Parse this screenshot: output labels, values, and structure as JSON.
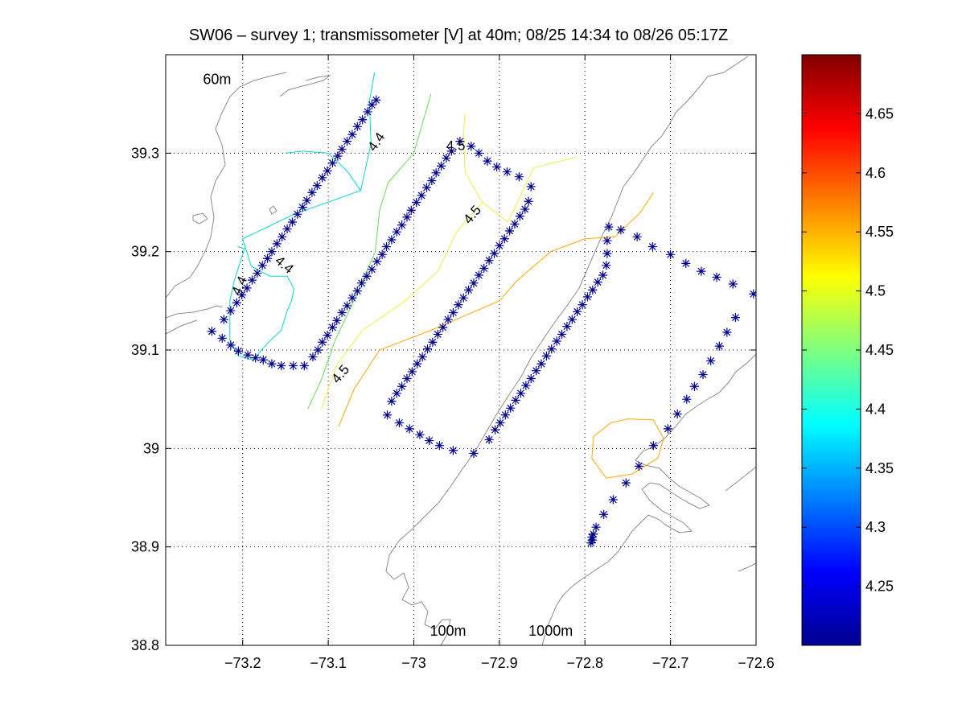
{
  "chart_data": {
    "type": "scatter",
    "title": "SW06 – survey 1; transmissometer [V] at 40m; 08/25 14:34 to 08/26 05:17Z",
    "xlabel": "",
    "ylabel": "",
    "xlim": [
      -73.29,
      -72.6
    ],
    "ylim": [
      38.8,
      39.4
    ],
    "grid": true,
    "x_ticks": [
      -73.2,
      -73.1,
      -73.0,
      -72.9,
      -72.8,
      -72.7,
      -72.6
    ],
    "x_tick_labels": [
      "−73.2",
      "−73.1",
      "−73",
      "−72.9",
      "−72.8",
      "−72.7",
      "−72.6"
    ],
    "y_ticks": [
      38.8,
      38.9,
      39.0,
      39.1,
      39.2,
      39.3
    ],
    "y_tick_labels": [
      "38.8",
      "38.9",
      "39",
      "39.1",
      "39.2",
      "39.3"
    ],
    "isobath_labels": [
      {
        "text": "60m",
        "x": -73.23,
        "y": 39.37
      },
      {
        "text": "100m",
        "x": -72.96,
        "y": 38.81
      },
      {
        "text": "1000m",
        "x": -72.84,
        "y": 38.81
      }
    ],
    "marker_color": "#00008b",
    "marker": "asterisk",
    "stations": [
      [
        -73.236,
        39.119
      ],
      [
        -73.222,
        39.131
      ],
      [
        -73.214,
        39.14
      ],
      [
        -73.207,
        39.148
      ],
      [
        -73.201,
        39.156
      ],
      [
        -73.195,
        39.163
      ],
      [
        -73.189,
        39.171
      ],
      [
        -73.183,
        39.178
      ],
      [
        -73.177,
        39.186
      ],
      [
        -73.171,
        39.193
      ],
      [
        -73.166,
        39.2
      ],
      [
        -73.16,
        39.208
      ],
      [
        -73.154,
        39.215
      ],
      [
        -73.148,
        39.223
      ],
      [
        -73.142,
        39.23
      ],
      [
        -73.136,
        39.238
      ],
      [
        -73.13,
        39.245
      ],
      [
        -73.125,
        39.252
      ],
      [
        -73.119,
        39.26
      ],
      [
        -73.113,
        39.267
      ],
      [
        -73.107,
        39.275
      ],
      [
        -73.101,
        39.282
      ],
      [
        -73.095,
        39.29
      ],
      [
        -73.089,
        39.297
      ],
      [
        -73.084,
        39.304
      ],
      [
        -73.078,
        39.312
      ],
      [
        -73.072,
        39.319
      ],
      [
        -73.066,
        39.327
      ],
      [
        -73.06,
        39.334
      ],
      [
        -73.054,
        39.342
      ],
      [
        -73.049,
        39.349
      ],
      [
        -73.044,
        39.354
      ],
      [
        -73.224,
        39.112
      ],
      [
        -73.214,
        39.105
      ],
      [
        -73.205,
        39.099
      ],
      [
        -73.194,
        39.095
      ],
      [
        -73.185,
        39.092
      ],
      [
        -73.176,
        39.09
      ],
      [
        -73.166,
        39.086
      ],
      [
        -73.155,
        39.084
      ],
      [
        -73.141,
        39.084
      ],
      [
        -73.128,
        39.084
      ],
      [
        -73.118,
        39.093
      ],
      [
        -73.112,
        39.1
      ],
      [
        -73.107,
        39.108
      ],
      [
        -73.101,
        39.115
      ],
      [
        -73.095,
        39.123
      ],
      [
        -73.09,
        39.13
      ],
      [
        -73.084,
        39.138
      ],
      [
        -73.078,
        39.145
      ],
      [
        -73.072,
        39.153
      ],
      [
        -73.066,
        39.16
      ],
      [
        -73.061,
        39.168
      ],
      [
        -73.055,
        39.175
      ],
      [
        -73.049,
        39.182
      ],
      [
        -73.043,
        39.19
      ],
      [
        -73.037,
        39.197
      ],
      [
        -73.032,
        39.205
      ],
      [
        -73.026,
        39.212
      ],
      [
        -73.02,
        39.22
      ],
      [
        -73.014,
        39.227
      ],
      [
        -73.008,
        39.235
      ],
      [
        -73.003,
        39.242
      ],
      [
        -72.997,
        39.25
      ],
      [
        -72.991,
        39.257
      ],
      [
        -72.985,
        39.265
      ],
      [
        -72.979,
        39.272
      ],
      [
        -72.974,
        39.28
      ],
      [
        -72.968,
        39.287
      ],
      [
        -72.962,
        39.295
      ],
      [
        -72.956,
        39.302
      ],
      [
        -72.946,
        39.312
      ],
      [
        -72.933,
        39.307
      ],
      [
        -72.924,
        39.3
      ],
      [
        -72.914,
        39.292
      ],
      [
        -72.903,
        39.286
      ],
      [
        -72.891,
        39.281
      ],
      [
        -72.877,
        39.276
      ],
      [
        -72.863,
        39.266
      ],
      [
        -72.866,
        39.251
      ],
      [
        -72.87,
        39.243
      ],
      [
        -72.876,
        39.236
      ],
      [
        -72.882,
        39.228
      ],
      [
        -72.888,
        39.221
      ],
      [
        -72.894,
        39.213
      ],
      [
        -72.9,
        39.206
      ],
      [
        -72.906,
        39.198
      ],
      [
        -72.912,
        39.191
      ],
      [
        -72.918,
        39.183
      ],
      [
        -72.924,
        39.176
      ],
      [
        -72.93,
        39.168
      ],
      [
        -72.936,
        39.161
      ],
      [
        -72.942,
        39.153
      ],
      [
        -72.948,
        39.146
      ],
      [
        -72.954,
        39.138
      ],
      [
        -72.96,
        39.131
      ],
      [
        -72.966,
        39.123
      ],
      [
        -72.972,
        39.116
      ],
      [
        -72.978,
        39.108
      ],
      [
        -72.984,
        39.101
      ],
      [
        -72.99,
        39.093
      ],
      [
        -72.996,
        39.086
      ],
      [
        -73.002,
        39.078
      ],
      [
        -73.008,
        39.071
      ],
      [
        -73.014,
        39.063
      ],
      [
        -73.02,
        39.056
      ],
      [
        -73.026,
        39.048
      ],
      [
        -73.031,
        39.034
      ],
      [
        -73.017,
        39.026
      ],
      [
        -73.005,
        39.02
      ],
      [
        -72.993,
        39.014
      ],
      [
        -72.982,
        39.008
      ],
      [
        -72.97,
        39.003
      ],
      [
        -72.954,
        38.998
      ],
      [
        -72.93,
        38.995
      ],
      [
        -72.912,
        39.009
      ],
      [
        -72.905,
        39.019
      ],
      [
        -72.899,
        39.026
      ],
      [
        -72.893,
        39.034
      ],
      [
        -72.887,
        39.041
      ],
      [
        -72.881,
        39.049
      ],
      [
        -72.875,
        39.056
      ],
      [
        -72.869,
        39.064
      ],
      [
        -72.863,
        39.071
      ],
      [
        -72.857,
        39.079
      ],
      [
        -72.851,
        39.086
      ],
      [
        -72.845,
        39.094
      ],
      [
        -72.839,
        39.101
      ],
      [
        -72.833,
        39.109
      ],
      [
        -72.827,
        39.116
      ],
      [
        -72.821,
        39.124
      ],
      [
        -72.815,
        39.131
      ],
      [
        -72.809,
        39.139
      ],
      [
        -72.803,
        39.146
      ],
      [
        -72.797,
        39.154
      ],
      [
        -72.791,
        39.161
      ],
      [
        -72.785,
        39.169
      ],
      [
        -72.779,
        39.176
      ],
      [
        -72.775,
        39.186
      ],
      [
        -72.774,
        39.198
      ],
      [
        -72.774,
        39.211
      ],
      [
        -72.772,
        39.225
      ],
      [
        -72.758,
        39.222
      ],
      [
        -72.739,
        39.215
      ],
      [
        -72.721,
        39.205
      ],
      [
        -72.7,
        39.197
      ],
      [
        -72.682,
        39.188
      ],
      [
        -72.664,
        39.18
      ],
      [
        -72.646,
        39.174
      ],
      [
        -72.627,
        39.167
      ],
      [
        -72.603,
        39.157
      ],
      [
        -72.624,
        39.133
      ],
      [
        -72.634,
        39.118
      ],
      [
        -72.643,
        39.104
      ],
      [
        -72.653,
        39.089
      ],
      [
        -72.662,
        39.075
      ],
      [
        -72.672,
        39.063
      ],
      [
        -72.681,
        39.05
      ],
      [
        -72.692,
        39.035
      ],
      [
        -72.703,
        39.02
      ],
      [
        -72.72,
        39.003
      ],
      [
        -72.737,
        38.982
      ],
      [
        -72.752,
        38.965
      ],
      [
        -72.767,
        38.948
      ],
      [
        -72.778,
        38.933
      ],
      [
        -72.787,
        38.92
      ],
      [
        -72.79,
        38.913
      ],
      [
        -72.792,
        38.91
      ],
      [
        -72.791,
        38.907
      ],
      [
        -72.793,
        38.904
      ]
    ],
    "contours": [
      {
        "level": 4.4,
        "color": "#00d8d8",
        "points": [
          [
            -73.15,
            39.3
          ],
          [
            -73.13,
            39.302
          ],
          [
            -73.1,
            39.3
          ],
          [
            -73.078,
            39.282
          ],
          [
            -73.062,
            39.262
          ],
          [
            -73.14,
            39.238
          ],
          [
            -73.2,
            39.213
          ],
          [
            -73.19,
            39.185
          ],
          [
            -73.168,
            39.175
          ],
          [
            -73.148,
            39.175
          ],
          [
            -73.14,
            39.162
          ],
          [
            -73.143,
            39.15
          ],
          [
            -73.148,
            39.14
          ],
          [
            -73.155,
            39.12
          ],
          [
            -73.17,
            39.108
          ],
          [
            -73.188,
            39.09
          ]
        ]
      },
      {
        "level": 4.4,
        "color": "#00d8d8",
        "points": [
          [
            -73.062,
            39.262
          ],
          [
            -73.05,
            39.31
          ],
          [
            -73.052,
            39.352
          ],
          [
            -73.046,
            39.382
          ]
        ]
      },
      {
        "level": 4.4,
        "color": "#00d8d8",
        "points": [
          [
            -73.188,
            39.09
          ],
          [
            -73.205,
            39.094
          ],
          [
            -73.215,
            39.11
          ],
          [
            -73.215,
            39.15
          ],
          [
            -73.21,
            39.17
          ],
          [
            -73.198,
            39.203
          ],
          [
            -73.206,
            39.205
          ]
        ]
      },
      {
        "level": 4.45,
        "color": "#66dd55",
        "points": [
          [
            -72.98,
            39.36
          ],
          [
            -73.0,
            39.3
          ],
          [
            -73.03,
            39.27
          ],
          [
            -73.04,
            39.242
          ],
          [
            -73.045,
            39.2
          ],
          [
            -73.055,
            39.18
          ],
          [
            -73.07,
            39.15
          ],
          [
            -73.092,
            39.11
          ],
          [
            -73.108,
            39.07
          ],
          [
            -73.124,
            39.04
          ]
        ]
      },
      {
        "level": 4.5,
        "color": "#eeee44",
        "points": [
          [
            -72.94,
            39.34
          ],
          [
            -72.942,
            39.32
          ],
          [
            -72.94,
            39.28
          ],
          [
            -72.92,
            39.25
          ],
          [
            -72.89,
            39.23
          ],
          [
            -72.86,
            39.285
          ],
          [
            -72.81,
            39.296
          ]
        ]
      },
      {
        "level": 4.5,
        "color": "#eeee44",
        "points": [
          [
            -72.92,
            39.25
          ],
          [
            -72.95,
            39.22
          ],
          [
            -72.972,
            39.18
          ],
          [
            -73.01,
            39.15
          ],
          [
            -73.06,
            39.12
          ],
          [
            -73.09,
            39.085
          ],
          [
            -73.108,
            39.04
          ]
        ]
      },
      {
        "level": 4.55,
        "color": "#ffa500",
        "points": [
          [
            -72.72,
            39.26
          ],
          [
            -72.735,
            39.24
          ],
          [
            -72.765,
            39.215
          ],
          [
            -72.8,
            39.213
          ],
          [
            -72.84,
            39.2
          ],
          [
            -72.88,
            39.17
          ],
          [
            -72.9,
            39.15
          ],
          [
            -72.94,
            39.135
          ],
          [
            -72.98,
            39.12
          ],
          [
            -73.04,
            39.1
          ],
          [
            -73.07,
            39.06
          ],
          [
            -73.088,
            39.022
          ]
        ]
      },
      {
        "level": 4.55,
        "color": "#ffa500",
        "points": [
          [
            -72.75,
            39.03
          ],
          [
            -72.72,
            39.029
          ],
          [
            -72.708,
            39.01
          ],
          [
            -72.715,
            38.99
          ],
          [
            -72.745,
            38.974
          ],
          [
            -72.775,
            38.97
          ],
          [
            -72.792,
            38.99
          ],
          [
            -72.79,
            39.012
          ],
          [
            -72.77,
            39.026
          ],
          [
            -72.75,
            39.03
          ]
        ]
      }
    ],
    "contour_labels": [
      {
        "text": "4.4",
        "x": -73.043,
        "y": 39.311,
        "angle": -55
      },
      {
        "text": "4.4",
        "x": -73.152,
        "y": 39.186,
        "angle": 40
      },
      {
        "text": "4.4",
        "x": -73.203,
        "y": 39.165,
        "angle": -65
      },
      {
        "text": "4.5",
        "x": -72.931,
        "y": 39.237,
        "angle": -50
      },
      {
        "text": "4.5",
        "x": -73.085,
        "y": 39.075,
        "angle": -50
      },
      {
        "text": "4.5",
        "x": -72.951,
        "y": 39.307,
        "angle": 0
      }
    ],
    "colorbar": {
      "label": "",
      "min": 4.2,
      "max": 4.7,
      "ticks": [
        4.25,
        4.3,
        4.35,
        4.4,
        4.45,
        4.5,
        4.55,
        4.6,
        4.65
      ],
      "tick_labels": [
        "4.25",
        "4.3",
        "4.35",
        "4.4",
        "4.45",
        "4.5",
        "4.55",
        "4.6",
        "4.65"
      ],
      "colormap": "jet"
    }
  }
}
